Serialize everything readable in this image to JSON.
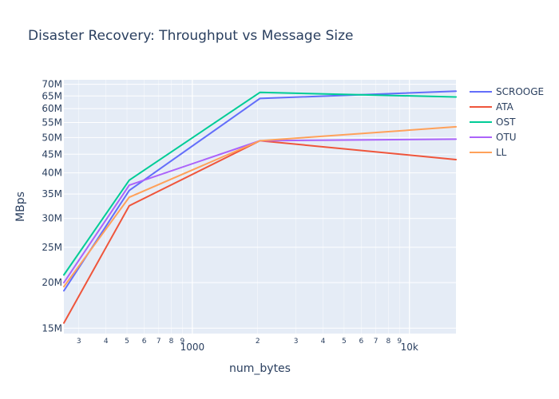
{
  "chart_data": {
    "type": "line",
    "title": "Disaster Recovery: Throughput vs Message Size",
    "xlabel": "num_bytes",
    "ylabel": "MBps",
    "x_scale": "log",
    "y_scale": "log",
    "xlim": [
      256,
      16384
    ],
    "ylim": [
      14500000,
      72000000
    ],
    "x": [
      256,
      512,
      2048,
      16384
    ],
    "series": [
      {
        "name": "SCROOGE",
        "color": "#636efa",
        "values": [
          19000000,
          35800000,
          64000000,
          67000000
        ]
      },
      {
        "name": "ATA",
        "color": "#ef553b",
        "values": [
          15500000,
          32500000,
          49000000,
          43500000
        ]
      },
      {
        "name": "OST",
        "color": "#00cc96",
        "values": [
          21000000,
          38200000,
          66500000,
          64600000
        ]
      },
      {
        "name": "OTU",
        "color": "#ab63fa",
        "values": [
          20000000,
          37000000,
          49000000,
          49500000
        ]
      },
      {
        "name": "LL",
        "color": "#ffa15a",
        "values": [
          19500000,
          34300000,
          49000000,
          53500000
        ]
      }
    ],
    "y_ticks": [
      {
        "value": 15000000,
        "label": "15M"
      },
      {
        "value": 20000000,
        "label": "20M"
      },
      {
        "value": 25000000,
        "label": "25M"
      },
      {
        "value": 30000000,
        "label": "30M"
      },
      {
        "value": 35000000,
        "label": "35M"
      },
      {
        "value": 40000000,
        "label": "40M"
      },
      {
        "value": 45000000,
        "label": "45M"
      },
      {
        "value": 50000000,
        "label": "50M"
      },
      {
        "value": 55000000,
        "label": "55M"
      },
      {
        "value": 60000000,
        "label": "60M"
      },
      {
        "value": 65000000,
        "label": "65M"
      },
      {
        "value": 70000000,
        "label": "70M"
      }
    ],
    "x_ticks_major": [
      {
        "value": 1000,
        "label": "1000"
      },
      {
        "value": 10000,
        "label": "10k"
      }
    ],
    "x_ticks_minor": [
      {
        "value": 300,
        "label": "3"
      },
      {
        "value": 400,
        "label": "4"
      },
      {
        "value": 500,
        "label": "5"
      },
      {
        "value": 600,
        "label": "6"
      },
      {
        "value": 700,
        "label": "7"
      },
      {
        "value": 800,
        "label": "8"
      },
      {
        "value": 900,
        "label": "9"
      },
      {
        "value": 2000,
        "label": "2"
      },
      {
        "value": 3000,
        "label": "3"
      },
      {
        "value": 4000,
        "label": "4"
      },
      {
        "value": 5000,
        "label": "5"
      },
      {
        "value": 6000,
        "label": "6"
      },
      {
        "value": 7000,
        "label": "7"
      },
      {
        "value": 8000,
        "label": "8"
      },
      {
        "value": 9000,
        "label": "9"
      }
    ],
    "grid": true,
    "legend_position": "top-right",
    "plot_bgcolor": "#e5ecf6"
  }
}
